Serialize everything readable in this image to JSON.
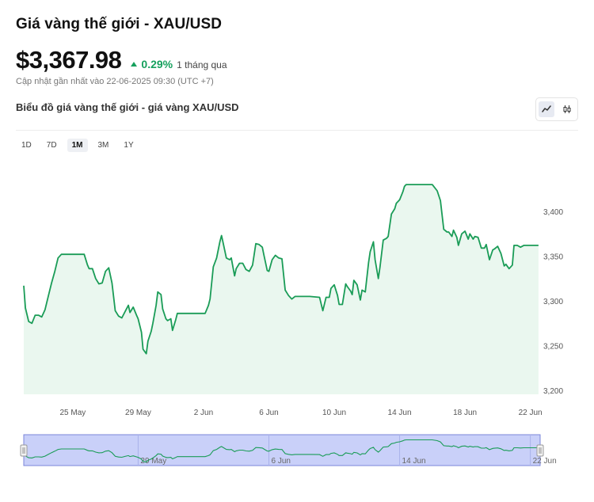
{
  "header": {
    "title": "Giá vàng thế giới - XAU/USD",
    "price": "$3,367.98",
    "change_pct": "0.29%",
    "change_period": "1 tháng qua",
    "updated": "Cập nhật gần nhất vào 22-06-2025 09:30 (UTC +7)"
  },
  "chart_section": {
    "subtitle": "Biểu đồ giá vàng thế giới - giá vàng XAU/USD",
    "toggle_icons": [
      "line-chart-icon",
      "candlestick-icon"
    ],
    "active_view": "line"
  },
  "ranges": {
    "items": [
      "1D",
      "7D",
      "1M",
      "3M",
      "1Y"
    ],
    "active": "1M"
  },
  "colors": {
    "line": "#1a9c57",
    "fill": "#eaf7ef",
    "navigator_bg": "#c9d0f9",
    "navigator_border": "#7b86d9",
    "up": "#16a05d"
  },
  "chart_data": {
    "type": "area",
    "title": "Biểu đồ giá vàng thế giới - giá vàng XAU/USD",
    "xlabel": "",
    "ylabel": "",
    "ylim": [
      3200,
      3430
    ],
    "y_ticks": [
      "3,200",
      "3,250",
      "3,300",
      "3,350",
      "3,400"
    ],
    "x_ticks": [
      "25 May",
      "29 May",
      "2 Jun",
      "6 Jun",
      "10 Jun",
      "14 Jun",
      "18 Jun",
      "22 Jun"
    ],
    "x_tick_days": [
      3,
      7,
      11,
      15,
      19,
      23,
      27,
      31
    ],
    "navigator_ticks": [
      "29 May",
      "6 Jun",
      "14 Jun",
      "22 Jun"
    ],
    "navigator_tick_days": [
      7,
      15,
      23,
      31
    ],
    "x_range_days": [
      0.0,
      31.6
    ],
    "series": [
      {
        "points": [
          [
            0.0,
            3317
          ],
          [
            0.1,
            3292
          ],
          [
            0.3,
            3277
          ],
          [
            0.5,
            3275
          ],
          [
            0.7,
            3284
          ],
          [
            0.9,
            3284
          ],
          [
            1.1,
            3282
          ],
          [
            1.3,
            3290
          ],
          [
            1.5,
            3305
          ],
          [
            1.7,
            3320
          ],
          [
            1.9,
            3333
          ],
          [
            2.1,
            3348
          ],
          [
            2.3,
            3352
          ],
          [
            3.0,
            3352
          ],
          [
            3.5,
            3352
          ],
          [
            3.7,
            3352
          ],
          [
            3.9,
            3340
          ],
          [
            4.0,
            3336
          ],
          [
            4.2,
            3336
          ],
          [
            4.4,
            3325
          ],
          [
            4.6,
            3319
          ],
          [
            4.8,
            3320
          ],
          [
            5.0,
            3333
          ],
          [
            5.2,
            3337
          ],
          [
            5.4,
            3320
          ],
          [
            5.6,
            3289
          ],
          [
            5.8,
            3283
          ],
          [
            6.0,
            3281
          ],
          [
            6.2,
            3288
          ],
          [
            6.4,
            3295
          ],
          [
            6.5,
            3287
          ],
          [
            6.7,
            3293
          ],
          [
            6.9,
            3284
          ],
          [
            7.0,
            3280
          ],
          [
            7.2,
            3265
          ],
          [
            7.3,
            3246
          ],
          [
            7.5,
            3241
          ],
          [
            7.6,
            3255
          ],
          [
            7.8,
            3266
          ],
          [
            7.9,
            3275
          ],
          [
            8.1,
            3295
          ],
          [
            8.2,
            3310
          ],
          [
            8.4,
            3307
          ],
          [
            8.5,
            3291
          ],
          [
            8.7,
            3280
          ],
          [
            8.8,
            3278
          ],
          [
            9.0,
            3280
          ],
          [
            9.1,
            3267
          ],
          [
            9.3,
            3279
          ],
          [
            9.4,
            3286
          ],
          [
            10.0,
            3286
          ],
          [
            10.5,
            3286
          ],
          [
            11.1,
            3286
          ],
          [
            11.3,
            3295
          ],
          [
            11.4,
            3302
          ],
          [
            11.6,
            3338
          ],
          [
            11.8,
            3348
          ],
          [
            12.0,
            3366
          ],
          [
            12.1,
            3373
          ],
          [
            12.2,
            3365
          ],
          [
            12.4,
            3348
          ],
          [
            12.6,
            3346
          ],
          [
            12.7,
            3348
          ],
          [
            12.9,
            3328
          ],
          [
            13.0,
            3336
          ],
          [
            13.2,
            3342
          ],
          [
            13.4,
            3342
          ],
          [
            13.6,
            3335
          ],
          [
            13.8,
            3333
          ],
          [
            14.0,
            3340
          ],
          [
            14.2,
            3364
          ],
          [
            14.4,
            3363
          ],
          [
            14.6,
            3360
          ],
          [
            14.7,
            3351
          ],
          [
            14.9,
            3334
          ],
          [
            15.0,
            3333
          ],
          [
            15.2,
            3346
          ],
          [
            15.4,
            3351
          ],
          [
            15.6,
            3348
          ],
          [
            15.8,
            3347
          ],
          [
            16.0,
            3312
          ],
          [
            16.2,
            3306
          ],
          [
            16.4,
            3302
          ],
          [
            16.6,
            3305
          ],
          [
            17.0,
            3305
          ],
          [
            17.5,
            3305
          ],
          [
            18.1,
            3304
          ],
          [
            18.3,
            3289
          ],
          [
            18.5,
            3304
          ],
          [
            18.7,
            3304
          ],
          [
            18.8,
            3314
          ],
          [
            19.0,
            3318
          ],
          [
            19.2,
            3306
          ],
          [
            19.3,
            3296
          ],
          [
            19.5,
            3296
          ],
          [
            19.7,
            3319
          ],
          [
            19.8,
            3316
          ],
          [
            20.0,
            3311
          ],
          [
            20.1,
            3307
          ],
          [
            20.2,
            3323
          ],
          [
            20.4,
            3318
          ],
          [
            20.6,
            3301
          ],
          [
            20.7,
            3312
          ],
          [
            20.9,
            3310
          ],
          [
            21.1,
            3343
          ],
          [
            21.2,
            3355
          ],
          [
            21.4,
            3366
          ],
          [
            21.5,
            3346
          ],
          [
            21.7,
            3325
          ],
          [
            21.8,
            3338
          ],
          [
            22.0,
            3368
          ],
          [
            22.2,
            3370
          ],
          [
            22.3,
            3372
          ],
          [
            22.5,
            3397
          ],
          [
            22.7,
            3403
          ],
          [
            22.8,
            3409
          ],
          [
            23.0,
            3413
          ],
          [
            23.2,
            3422
          ],
          [
            23.3,
            3428
          ],
          [
            23.4,
            3430
          ],
          [
            24.0,
            3430
          ],
          [
            24.5,
            3430
          ],
          [
            25.0,
            3430
          ],
          [
            25.3,
            3423
          ],
          [
            25.5,
            3412
          ],
          [
            25.7,
            3380
          ],
          [
            25.9,
            3377
          ],
          [
            26.0,
            3377
          ],
          [
            26.2,
            3372
          ],
          [
            26.3,
            3379
          ],
          [
            26.5,
            3371
          ],
          [
            26.6,
            3362
          ],
          [
            26.8,
            3375
          ],
          [
            27.0,
            3378
          ],
          [
            27.2,
            3369
          ],
          [
            27.3,
            3375
          ],
          [
            27.5,
            3369
          ],
          [
            27.6,
            3372
          ],
          [
            27.8,
            3371
          ],
          [
            28.0,
            3359
          ],
          [
            28.2,
            3359
          ],
          [
            28.3,
            3363
          ],
          [
            28.5,
            3346
          ],
          [
            28.7,
            3357
          ],
          [
            28.8,
            3358
          ],
          [
            29.0,
            3361
          ],
          [
            29.2,
            3353
          ],
          [
            29.4,
            3339
          ],
          [
            29.5,
            3341
          ],
          [
            29.7,
            3336
          ],
          [
            29.9,
            3340
          ],
          [
            30.0,
            3362
          ],
          [
            30.2,
            3362
          ],
          [
            30.4,
            3360
          ],
          [
            30.6,
            3362
          ],
          [
            31.0,
            3362
          ],
          [
            31.5,
            3362
          ]
        ]
      }
    ]
  }
}
